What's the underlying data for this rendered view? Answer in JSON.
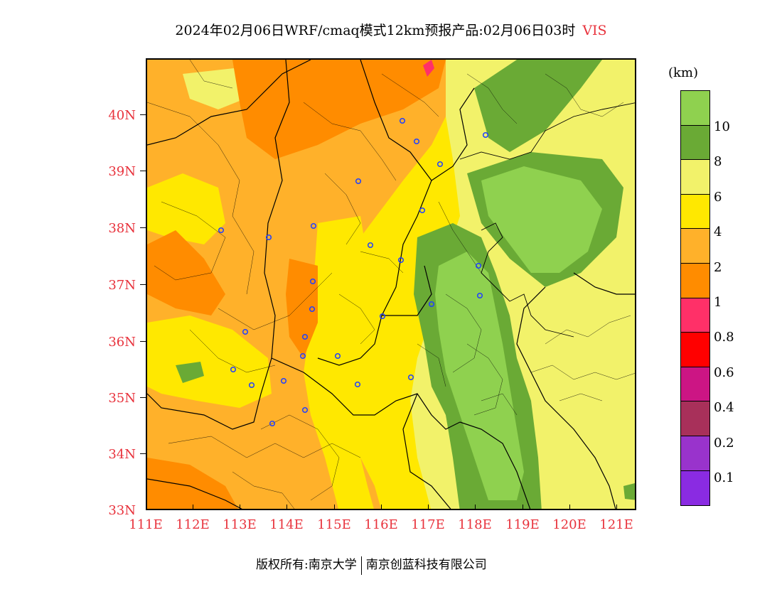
{
  "title": {
    "main": "2024年02月06日WRF/cmaq模式12km预报产品:02月06日03时",
    "variable": "VIS"
  },
  "map": {
    "lat_labels": [
      "40N",
      "39N",
      "38N",
      "37N",
      "36N",
      "35N",
      "34N",
      "33N"
    ],
    "lon_labels": [
      "111E",
      "112E",
      "113E",
      "114E",
      "115E",
      "116E",
      "117E",
      "118E",
      "119E",
      "120E",
      "121E"
    ],
    "lat_range": [
      33,
      41
    ],
    "lon_range": [
      111,
      121.4
    ]
  },
  "legend": {
    "unit": "(km)",
    "labels": [
      "10",
      "8",
      "6",
      "4",
      "2",
      "1",
      "0.8",
      "0.6",
      "0.4",
      "0.2",
      "0.1"
    ],
    "colors": [
      "#8fd14f",
      "#6aaa35",
      "#f2f26a",
      "#ffe800",
      "#ffb12a",
      "#ff8c00",
      "#ff3068",
      "#ff0000",
      "#cc1584",
      "#a8305a",
      "#9933cc",
      "#8a2be2"
    ]
  },
  "footer": {
    "copyright": "版权所有:南京大学",
    "company": "南京创蓝科技有限公司"
  },
  "colors": {
    "axis_label": "#e8323c",
    "city_marker": "#2040ff"
  }
}
